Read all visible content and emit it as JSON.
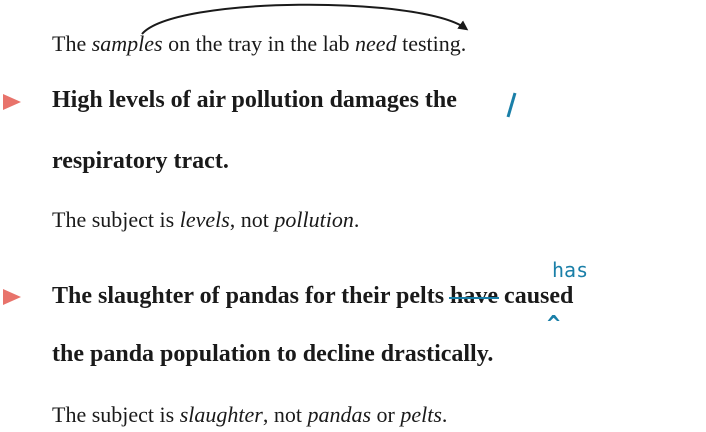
{
  "example": {
    "before": "The ",
    "subject": "samples",
    "middle": " on the tray in the lab ",
    "verb": "need",
    "after": " testing."
  },
  "items": [
    {
      "line1_pre": "High levels of air pollution damage",
      "line1_s": "s",
      "line1_post": " the",
      "line2": "respiratory tract.",
      "note": {
        "pre": "The subject is ",
        "subject": "levels",
        "mid": ", not ",
        "other": "pollution",
        "end": "."
      }
    },
    {
      "line1_pre": "The slaughter of pandas for their pelts ",
      "line1_struck": "have",
      "line1_post": " caused",
      "line2": "the panda population to decline drastically.",
      "insert_word": "has",
      "caret": "^",
      "note": {
        "pre": "The subject is ",
        "subject": "slaughter",
        "mid1": ", not ",
        "other1": "pandas",
        "mid2": " or ",
        "other2": "pelts",
        "end": "."
      }
    }
  ],
  "colors": {
    "bullet": "#e8736b",
    "correction": "#1a7fa8",
    "arrow": "#1a1a1a"
  }
}
